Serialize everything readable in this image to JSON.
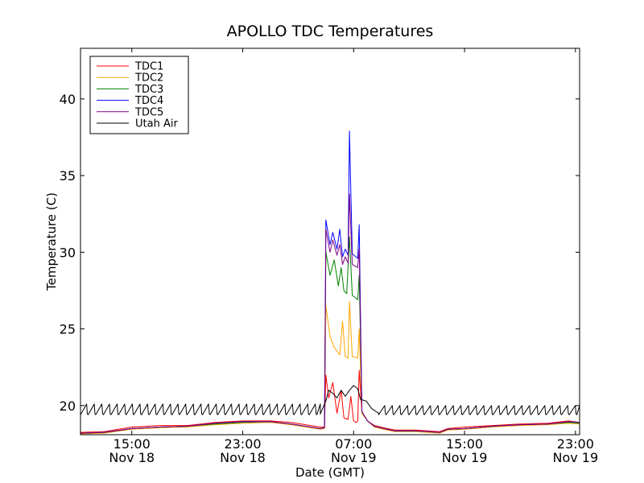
{
  "chart_data": {
    "type": "line",
    "title": "APOLLO TDC Temperatures",
    "xlabel": "Date (GMT)",
    "ylabel": "Temperature (C)",
    "xlim_hours_from_Nov18_00": [
      11.3,
      47.3
    ],
    "ylim": [
      18.1,
      43.3
    ],
    "y_ticks": [
      20,
      25,
      30,
      35,
      40
    ],
    "x_ticks": [
      {
        "hour": 15,
        "time": "15:00",
        "date": "Nov 18"
      },
      {
        "hour": 23,
        "time": "23:00",
        "date": "Nov 18"
      },
      {
        "hour": 31,
        "time": "07:00",
        "date": "Nov 19"
      },
      {
        "hour": 39,
        "time": "15:00",
        "date": "Nov 19"
      },
      {
        "hour": 47,
        "time": "23:00",
        "date": "Nov 19"
      }
    ],
    "legend_position": "top-left",
    "series": [
      {
        "name": "TDC1",
        "color": "#ff0000",
        "points": [
          [
            11.3,
            18.25
          ],
          [
            13,
            18.3
          ],
          [
            15,
            18.6
          ],
          [
            17,
            18.7
          ],
          [
            19,
            18.7
          ],
          [
            21,
            18.9
          ],
          [
            23,
            19.0
          ],
          [
            25,
            19.0
          ],
          [
            26.5,
            18.9
          ],
          [
            28.6,
            18.6
          ],
          [
            28.9,
            18.6
          ],
          [
            29.0,
            22.0
          ],
          [
            29.2,
            20.5
          ],
          [
            29.5,
            21.5
          ],
          [
            29.8,
            19.5
          ],
          [
            30.1,
            21.0
          ],
          [
            30.3,
            19.2
          ],
          [
            30.6,
            19.1
          ],
          [
            30.8,
            20.6
          ],
          [
            31.0,
            19.0
          ],
          [
            31.2,
            18.9
          ],
          [
            31.3,
            19.0
          ],
          [
            31.4,
            22.3
          ],
          [
            31.6,
            19.5
          ],
          [
            32.0,
            19.0
          ],
          [
            32.5,
            18.7
          ],
          [
            33.4,
            18.5
          ],
          [
            34,
            18.4
          ],
          [
            35.5,
            18.4
          ],
          [
            37.2,
            18.3
          ],
          [
            37.8,
            18.5
          ],
          [
            39,
            18.6
          ],
          [
            41,
            18.7
          ],
          [
            43,
            18.8
          ],
          [
            45,
            18.85
          ],
          [
            46.5,
            19.0
          ],
          [
            47.3,
            18.9
          ]
        ]
      },
      {
        "name": "TDC2",
        "color": "#ffa500",
        "points": [
          [
            11.3,
            18.15
          ],
          [
            13,
            18.2
          ],
          [
            15,
            18.45
          ],
          [
            17,
            18.55
          ],
          [
            19,
            18.6
          ],
          [
            21,
            18.75
          ],
          [
            23,
            18.85
          ],
          [
            25,
            18.9
          ],
          [
            26.5,
            18.75
          ],
          [
            28.6,
            18.45
          ],
          [
            28.9,
            18.5
          ],
          [
            29.0,
            26.5
          ],
          [
            29.3,
            24.5
          ],
          [
            29.6,
            23.8
          ],
          [
            30.0,
            23.3
          ],
          [
            30.2,
            25.5
          ],
          [
            30.4,
            23.2
          ],
          [
            30.6,
            23.1
          ],
          [
            30.7,
            26.8
          ],
          [
            30.9,
            23.2
          ],
          [
            31.3,
            23.1
          ],
          [
            31.4,
            25.0
          ],
          [
            31.6,
            19.5
          ],
          [
            32.0,
            19.0
          ],
          [
            32.5,
            18.6
          ],
          [
            33.4,
            18.4
          ],
          [
            34,
            18.3
          ],
          [
            35.5,
            18.3
          ],
          [
            37.2,
            18.2
          ],
          [
            37.8,
            18.4
          ],
          [
            39,
            18.45
          ],
          [
            41,
            18.6
          ],
          [
            43,
            18.7
          ],
          [
            45,
            18.75
          ],
          [
            46.5,
            18.85
          ],
          [
            47.3,
            18.8
          ]
        ]
      },
      {
        "name": "TDC3",
        "color": "#008000",
        "points": [
          [
            11.3,
            18.2
          ],
          [
            13,
            18.25
          ],
          [
            15,
            18.5
          ],
          [
            17,
            18.6
          ],
          [
            19,
            18.65
          ],
          [
            21,
            18.8
          ],
          [
            23,
            18.9
          ],
          [
            25,
            18.95
          ],
          [
            26.5,
            18.8
          ],
          [
            28.6,
            18.5
          ],
          [
            28.9,
            18.55
          ],
          [
            29.0,
            30.0
          ],
          [
            29.3,
            28.5
          ],
          [
            29.6,
            29.5
          ],
          [
            29.9,
            27.8
          ],
          [
            30.1,
            29.0
          ],
          [
            30.3,
            27.5
          ],
          [
            30.5,
            27.3
          ],
          [
            30.7,
            31.0
          ],
          [
            30.9,
            27.2
          ],
          [
            31.3,
            26.9
          ],
          [
            31.4,
            28.5
          ],
          [
            31.6,
            19.6
          ],
          [
            32.0,
            19.0
          ],
          [
            32.5,
            18.65
          ],
          [
            33.4,
            18.45
          ],
          [
            34,
            18.35
          ],
          [
            35.5,
            18.35
          ],
          [
            37.2,
            18.25
          ],
          [
            37.8,
            18.45
          ],
          [
            39,
            18.5
          ],
          [
            41,
            18.65
          ],
          [
            43,
            18.75
          ],
          [
            45,
            18.8
          ],
          [
            46.5,
            18.9
          ],
          [
            47.3,
            18.85
          ]
        ]
      },
      {
        "name": "TDC4",
        "color": "#0000ff",
        "points": [
          [
            11.3,
            18.2
          ],
          [
            13,
            18.25
          ],
          [
            15,
            18.5
          ],
          [
            17,
            18.6
          ],
          [
            19,
            18.65
          ],
          [
            21,
            18.85
          ],
          [
            23,
            18.95
          ],
          [
            25,
            18.95
          ],
          [
            26.5,
            18.8
          ],
          [
            28.6,
            18.5
          ],
          [
            28.9,
            18.55
          ],
          [
            29.0,
            32.1
          ],
          [
            29.3,
            30.5
          ],
          [
            29.5,
            31.3
          ],
          [
            29.8,
            30.2
          ],
          [
            30.0,
            31.5
          ],
          [
            30.2,
            29.7
          ],
          [
            30.4,
            30.2
          ],
          [
            30.6,
            29.8
          ],
          [
            30.7,
            37.9
          ],
          [
            30.9,
            29.9
          ],
          [
            31.3,
            29.6
          ],
          [
            31.4,
            31.8
          ],
          [
            31.6,
            19.6
          ],
          [
            32.0,
            19.0
          ],
          [
            32.5,
            18.65
          ],
          [
            33.4,
            18.45
          ],
          [
            34,
            18.35
          ],
          [
            35.5,
            18.35
          ],
          [
            37.2,
            18.25
          ],
          [
            37.8,
            18.45
          ],
          [
            39,
            18.5
          ],
          [
            41,
            18.65
          ],
          [
            43,
            18.75
          ],
          [
            45,
            18.8
          ],
          [
            46.5,
            18.95
          ],
          [
            47.3,
            18.9
          ]
        ]
      },
      {
        "name": "TDC5",
        "color": "#800080",
        "points": [
          [
            11.3,
            18.2
          ],
          [
            13,
            18.25
          ],
          [
            15,
            18.5
          ],
          [
            17,
            18.6
          ],
          [
            19,
            18.65
          ],
          [
            21,
            18.85
          ],
          [
            23,
            18.95
          ],
          [
            25,
            18.95
          ],
          [
            26.5,
            18.8
          ],
          [
            28.6,
            18.5
          ],
          [
            28.9,
            18.55
          ],
          [
            29.0,
            31.5
          ],
          [
            29.3,
            30.0
          ],
          [
            29.5,
            30.8
          ],
          [
            29.8,
            29.8
          ],
          [
            30.0,
            30.5
          ],
          [
            30.2,
            29.2
          ],
          [
            30.4,
            29.7
          ],
          [
            30.6,
            29.3
          ],
          [
            30.7,
            33.8
          ],
          [
            30.9,
            29.2
          ],
          [
            31.3,
            29.0
          ],
          [
            31.4,
            30.2
          ],
          [
            31.6,
            19.6
          ],
          [
            32.0,
            19.0
          ],
          [
            32.5,
            18.65
          ],
          [
            33.4,
            18.45
          ],
          [
            34,
            18.35
          ],
          [
            35.5,
            18.35
          ],
          [
            37.2,
            18.25
          ],
          [
            37.8,
            18.45
          ],
          [
            39,
            18.5
          ],
          [
            41,
            18.65
          ],
          [
            43,
            18.75
          ],
          [
            45,
            18.8
          ],
          [
            46.5,
            18.95
          ],
          [
            47.3,
            18.9
          ]
        ]
      },
      {
        "name": "Utah Air",
        "color": "#000000",
        "sawtooth": {
          "start": 11.3,
          "end": 28.6,
          "period": 0.55,
          "low": 19.4,
          "high": 20.1
        },
        "points": [
          [
            29.0,
            20.3
          ],
          [
            29.2,
            21.0
          ],
          [
            29.5,
            20.8
          ],
          [
            29.8,
            20.5
          ],
          [
            30.1,
            21.0
          ],
          [
            30.4,
            20.6
          ],
          [
            30.7,
            21.0
          ],
          [
            31.0,
            21.3
          ],
          [
            31.3,
            21.1
          ],
          [
            31.5,
            20.4
          ],
          [
            31.9,
            20.3
          ],
          [
            32.3,
            19.8
          ],
          [
            32.8,
            19.5
          ]
        ],
        "sawtooth_after": {
          "start": 32.8,
          "end": 47.3,
          "period": 0.55,
          "low": 19.4,
          "high": 20.0
        }
      }
    ]
  }
}
